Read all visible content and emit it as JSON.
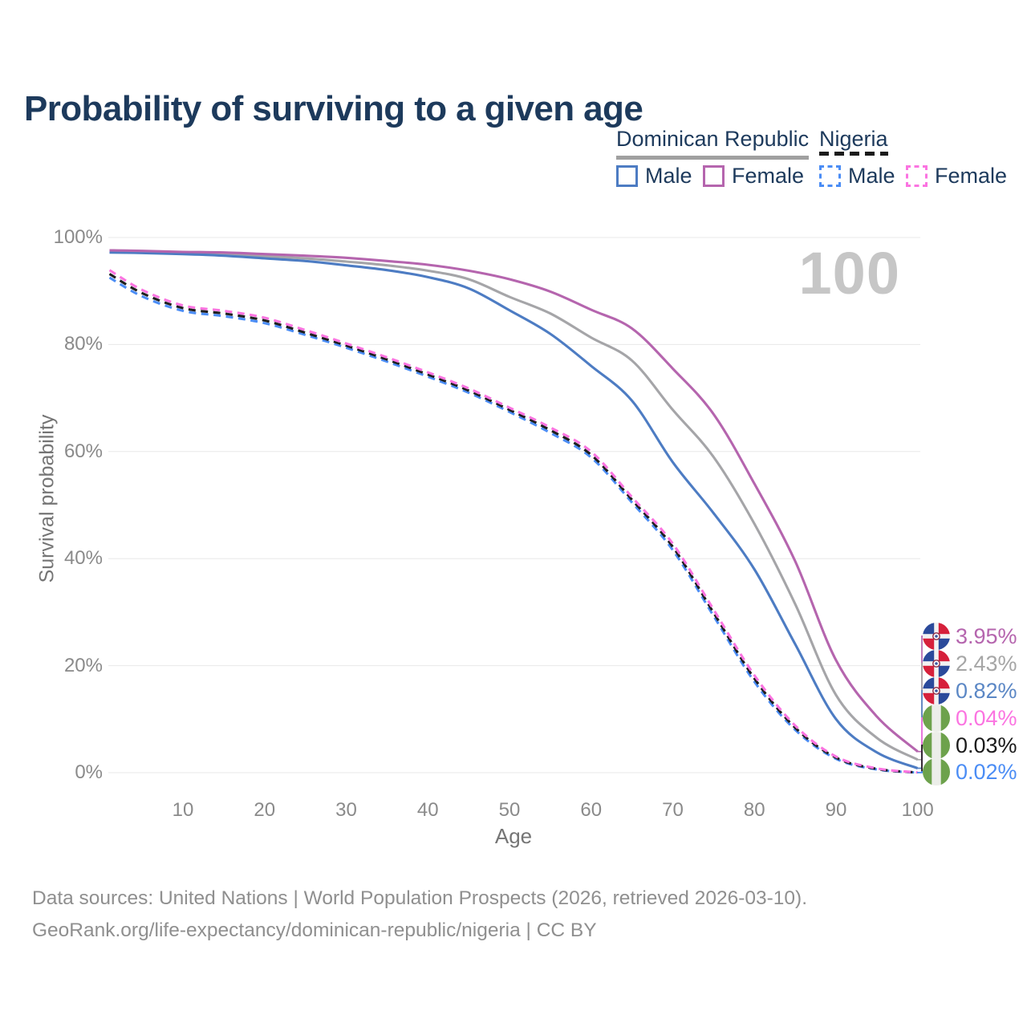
{
  "page_title": "Probability of surviving to a given age",
  "age_indicator": "100",
  "legend": {
    "groups": [
      {
        "label": "Dominican Republic",
        "underline": "solid",
        "items": [
          {
            "label": "Male",
            "color": "#4d7cc3"
          },
          {
            "label": "Female",
            "color": "#b565ae"
          }
        ]
      },
      {
        "label": "Nigeria",
        "underline": "dashed",
        "items": [
          {
            "label": "Male",
            "color": "#4b8df5"
          },
          {
            "label": "Female",
            "color": "#fb74e1"
          }
        ]
      }
    ]
  },
  "end_labels": [
    {
      "text": "3.95%",
      "series": "dr_female",
      "flag": "dominican-republic",
      "color": "#b565ae"
    },
    {
      "text": "2.43%",
      "series": "dr_both",
      "flag": "dominican-republic",
      "color": "#a6a6a6"
    },
    {
      "text": "0.82%",
      "series": "dr_male",
      "flag": "dominican-republic",
      "color": "#5b87c5"
    },
    {
      "text": "0.04%",
      "series": "ng_female",
      "flag": "nigeria",
      "color": "#fb74e1"
    },
    {
      "text": "0.03%",
      "series": "ng_both",
      "flag": "nigeria",
      "color": "#1a1a1a"
    },
    {
      "text": "0.02%",
      "series": "ng_male",
      "flag": "nigeria",
      "color": "#4b8df5"
    }
  ],
  "footer": {
    "line1": "Data sources: United Nations | World Population Prospects (2026, retrieved 2026-03-10).",
    "line2": "GeoRank.org/life-expectancy/dominican-republic/nigeria | CC BY"
  },
  "chart_data": {
    "type": "line",
    "title": "Probability of surviving to a given age",
    "xlabel": "Age",
    "ylabel": "Survival probability",
    "xlim": [
      0,
      104
    ],
    "ylim": [
      0,
      100
    ],
    "grid": "horizontal",
    "legend_position": "top-right",
    "x_ticks": [
      10,
      20,
      30,
      40,
      50,
      60,
      70,
      80,
      90,
      100
    ],
    "y_ticks": [
      {
        "value": 0,
        "label": "0%"
      },
      {
        "value": 20,
        "label": "20%"
      },
      {
        "value": 40,
        "label": "40%"
      },
      {
        "value": 60,
        "label": "60%"
      },
      {
        "value": 80,
        "label": "80%"
      },
      {
        "value": 100,
        "label": "100%"
      }
    ],
    "ages": [
      1,
      5,
      10,
      15,
      20,
      25,
      30,
      35,
      40,
      45,
      50,
      55,
      60,
      65,
      70,
      75,
      80,
      85,
      90,
      95,
      100
    ],
    "series": [
      {
        "id": "dr_both",
        "name": "Dominican Republic — Both sexes",
        "color": "#a5a5a8",
        "dashed": false,
        "values": [
          97.4,
          97.3,
          97.1,
          96.9,
          96.5,
          96.1,
          95.5,
          94.8,
          93.8,
          92.2,
          88.9,
          85.8,
          81.3,
          77.0,
          67.8,
          59.0,
          46.5,
          31.5,
          14.5,
          6.5,
          2.43
        ]
      },
      {
        "id": "dr_male",
        "name": "Dominican Republic — Male",
        "color": "#4d7cc3",
        "dashed": false,
        "values": [
          97.2,
          97.1,
          96.9,
          96.6,
          96.1,
          95.6,
          94.8,
          93.9,
          92.6,
          90.5,
          86.4,
          82.0,
          76.0,
          69.5,
          58.0,
          48.5,
          38.0,
          24.0,
          10.0,
          3.8,
          0.82
        ]
      },
      {
        "id": "dr_female",
        "name": "Dominican Republic — Female",
        "color": "#b565ae",
        "dashed": false,
        "values": [
          97.6,
          97.5,
          97.3,
          97.2,
          96.9,
          96.6,
          96.2,
          95.6,
          94.9,
          93.8,
          92.2,
          89.9,
          86.5,
          83.0,
          75.5,
          67.0,
          54.0,
          39.5,
          21.0,
          10.5,
          3.95
        ]
      },
      {
        "id": "ng_male",
        "name": "Nigeria — Male",
        "color": "#4b8df5",
        "dashed": true,
        "values": [
          92.5,
          89.0,
          86.3,
          85.3,
          84.0,
          81.8,
          79.4,
          76.8,
          74.0,
          71.0,
          67.4,
          63.5,
          58.9,
          50.5,
          41.6,
          29.3,
          17.0,
          8.0,
          2.6,
          0.6,
          0.02
        ]
      },
      {
        "id": "ng_both",
        "name": "Nigeria — Both sexes",
        "color": "#1f1f1f",
        "dashed": true,
        "values": [
          93.2,
          89.6,
          86.8,
          85.8,
          84.5,
          82.2,
          79.8,
          77.2,
          74.4,
          71.4,
          67.8,
          64.0,
          59.4,
          51.0,
          42.2,
          29.9,
          17.6,
          8.4,
          2.8,
          0.7,
          0.03
        ]
      },
      {
        "id": "ng_female",
        "name": "Nigeria — Female",
        "color": "#fb74e1",
        "dashed": true,
        "values": [
          93.9,
          90.2,
          87.3,
          86.3,
          85.0,
          82.7,
          80.2,
          77.6,
          74.8,
          71.8,
          68.2,
          64.5,
          60.0,
          51.5,
          42.8,
          30.5,
          18.2,
          8.8,
          3.0,
          0.8,
          0.04
        ]
      }
    ]
  }
}
